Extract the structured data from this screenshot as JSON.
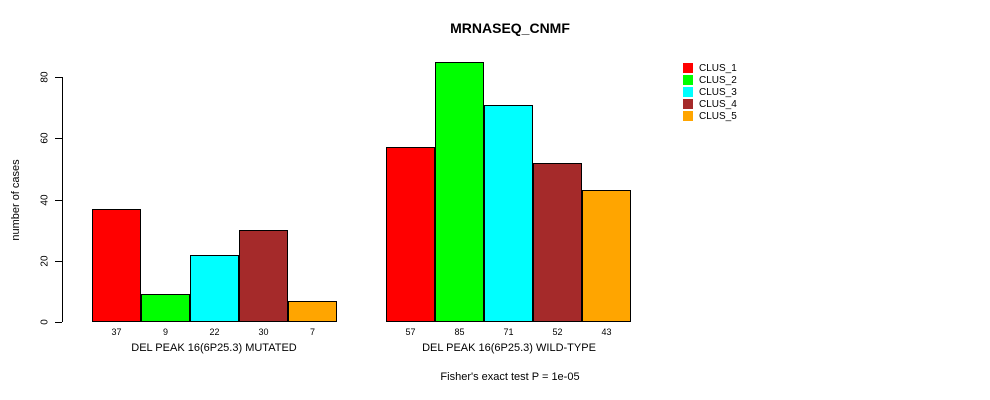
{
  "chart_data": {
    "type": "bar",
    "title": "MRNASEQ_CNMF",
    "ylabel": "number of cases",
    "xlabel": "",
    "yticks": [
      0,
      20,
      40,
      60,
      80
    ],
    "ylim": [
      0,
      85
    ],
    "grid": false,
    "legend_position": "right",
    "categories": [
      "DEL PEAK 16(6P25.3) MUTATED",
      "DEL PEAK 16(6P25.3) WILD-TYPE"
    ],
    "series": [
      {
        "name": "CLUS_1",
        "color": "#FF0000",
        "values": [
          37,
          57
        ]
      },
      {
        "name": "CLUS_2",
        "color": "#00FF00",
        "values": [
          9,
          85
        ]
      },
      {
        "name": "CLUS_3",
        "color": "#00FFFF",
        "values": [
          22,
          71
        ]
      },
      {
        "name": "CLUS_4",
        "color": "#A52A2A",
        "values": [
          30,
          52
        ]
      },
      {
        "name": "CLUS_5",
        "color": "#FFA500",
        "values": [
          7,
          43
        ]
      }
    ],
    "bar_value_labels": [
      [
        37,
        9,
        22,
        30,
        7
      ],
      [
        57,
        85,
        71,
        52,
        43
      ]
    ],
    "annotation": "Fisher's exact test P = 1e-05",
    "colors": {
      "background": "#FFFFFF",
      "bar_border": "#000000",
      "text": "#000000"
    }
  }
}
